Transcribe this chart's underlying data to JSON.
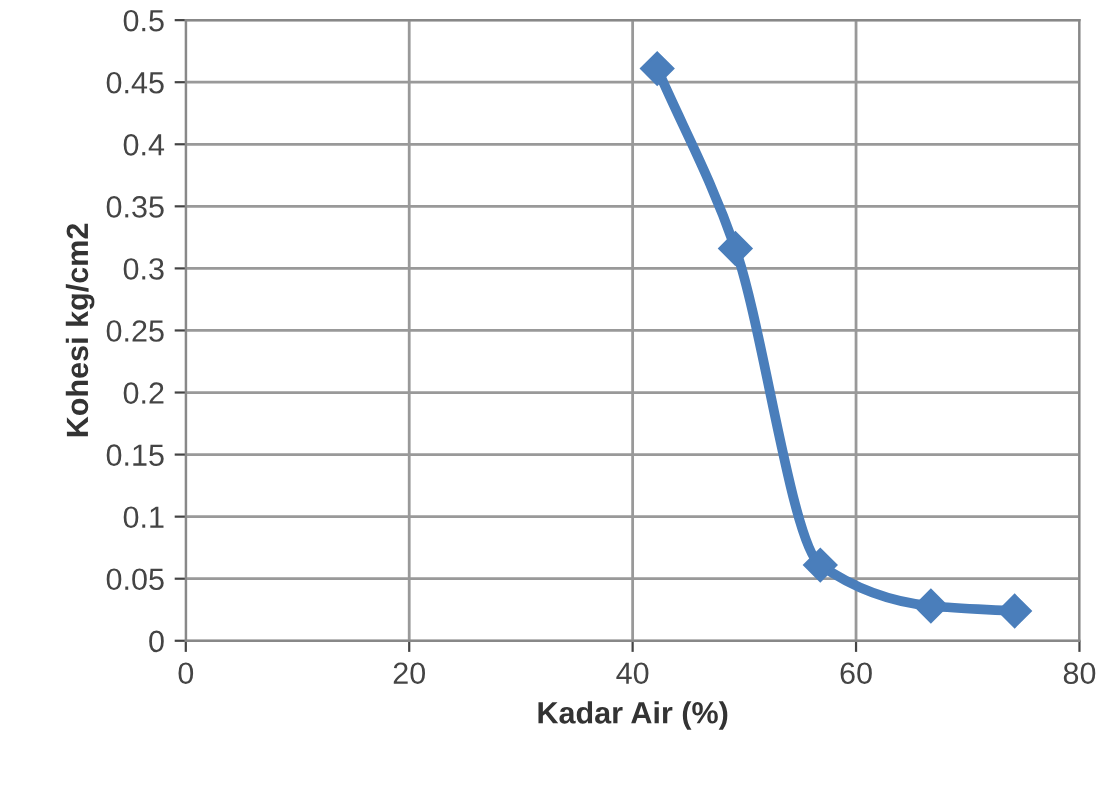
{
  "chart_data": {
    "type": "line",
    "xlabel": "Kadar Air (%)",
    "ylabel": "Kohesi kg/cm2",
    "x": [
      42.2,
      49.2,
      56.8,
      66.7,
      74.2
    ],
    "series": [
      {
        "color": "#4a7ebb",
        "values": [
          0.461,
          0.316,
          0.061,
          0.028,
          0.024
        ]
      }
    ],
    "xlim": [
      0,
      80
    ],
    "xticks": [
      0,
      20,
      40,
      60,
      80
    ],
    "ylim": [
      0,
      0.5
    ],
    "yticks": [
      0,
      0.05,
      0.1,
      0.15,
      0.2,
      0.25,
      0.3,
      0.35,
      0.4,
      0.45,
      0.5
    ],
    "grid": true,
    "marker": "diamond",
    "line_style": "solid"
  }
}
